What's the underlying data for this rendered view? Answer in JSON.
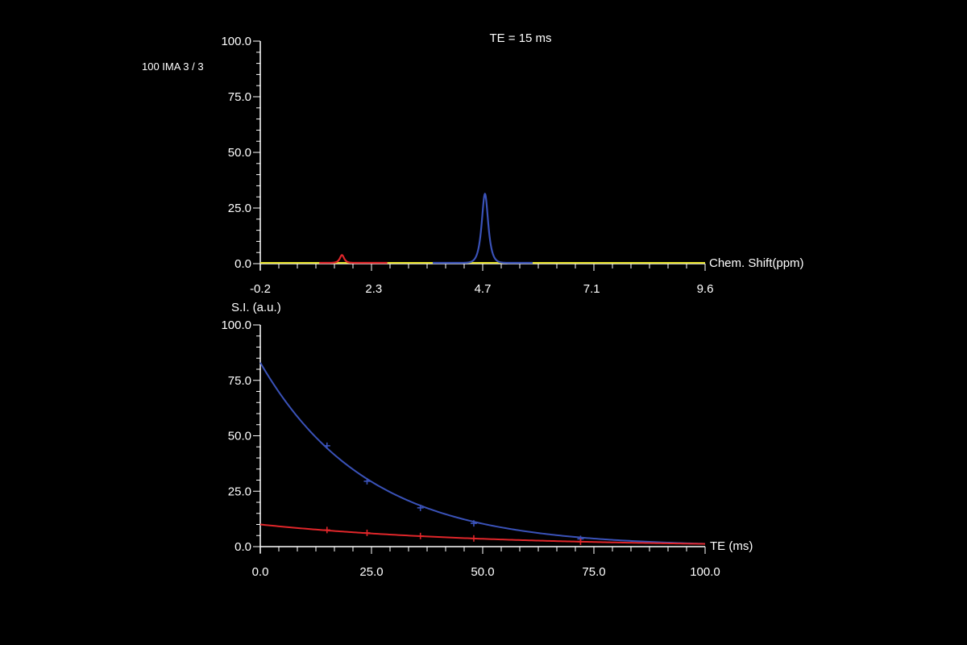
{
  "colors": {
    "background": "#000000",
    "axis": "#ffffff",
    "blue": "#3a52b8",
    "red": "#e0262a",
    "yellow": "#e6e22c"
  },
  "header": {
    "title": "TE = 15 ms",
    "series_info": "100 IMA 3 / 3"
  },
  "chart_data": [
    {
      "type": "line",
      "title": "TE = 15 ms",
      "xlabel": "Chem. Shift(ppm)",
      "ylabel": "",
      "x_axis_direction": "left-to-right increasing",
      "xlim": [
        -0.2,
        9.6
      ],
      "ylim": [
        0,
        100
      ],
      "x_tick_labels": [
        "-0.2",
        "2.3",
        "4.7",
        "7.1",
        "9.6"
      ],
      "x_tick_values": [
        -0.2,
        2.3,
        4.7,
        7.1,
        9.6
      ],
      "y_tick_labels": [
        "0.0",
        "25.0",
        "50.0",
        "75.0",
        "100.0"
      ],
      "y_tick_values": [
        0,
        25,
        50,
        75,
        100
      ],
      "series": [
        {
          "color": "#3a52b8",
          "peaks": [
            {
              "center": 4.75,
              "height": 31,
              "width": 0.09
            }
          ],
          "range": [
            3.6,
            5.8
          ]
        },
        {
          "color": "#e0262a",
          "peaks": [
            {
              "center": 1.6,
              "height": 3.5,
              "width": 0.06
            }
          ],
          "range": [
            1.1,
            2.6
          ]
        }
      ],
      "baseline_color": "#e6e22c",
      "grid": false
    },
    {
      "type": "line",
      "title": "",
      "xlabel": "TE (ms)",
      "ylabel": "S.I. (a.u.)",
      "xlim": [
        0,
        100
      ],
      "ylim": [
        0,
        100
      ],
      "x_tick_labels": [
        "0.0",
        "25.0",
        "50.0",
        "75.0",
        "100.0"
      ],
      "x_tick_values": [
        0,
        25,
        50,
        75,
        100
      ],
      "y_tick_labels": [
        "0.0",
        "25.0",
        "50.0",
        "75.0",
        "100.0"
      ],
      "y_tick_values": [
        0,
        25,
        50,
        75,
        100
      ],
      "series": [
        {
          "color": "#3a52b8",
          "fit": {
            "model": "exponential",
            "s0": 83,
            "t2": 24
          },
          "points": [
            {
              "x": 15,
              "y": 45.5
            },
            {
              "x": 24,
              "y": 29.5
            },
            {
              "x": 36,
              "y": 17.5
            },
            {
              "x": 48,
              "y": 10.5
            },
            {
              "x": 72,
              "y": 3.5
            }
          ]
        },
        {
          "color": "#e0262a",
          "fit": {
            "model": "exponential",
            "s0": 10,
            "t2": 48
          },
          "points": [
            {
              "x": 15,
              "y": 7.5
            },
            {
              "x": 24,
              "y": 6.2
            },
            {
              "x": 36,
              "y": 4.8
            },
            {
              "x": 48,
              "y": 3.7
            },
            {
              "x": 72,
              "y": 2.2
            }
          ]
        }
      ],
      "grid": false
    }
  ]
}
